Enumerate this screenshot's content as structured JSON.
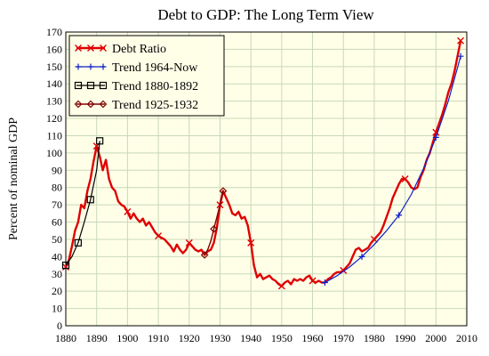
{
  "chart_data": {
    "type": "line",
    "title": "Debt to GDP: The Long Term View",
    "xlabel": "",
    "ylabel": "Percent of nominal GDP",
    "xlim": [
      1880,
      2010
    ],
    "ylim": [
      0,
      170
    ],
    "xticks": [
      1880,
      1890,
      1900,
      1910,
      1920,
      1930,
      1940,
      1950,
      1960,
      1970,
      1980,
      1990,
      2000,
      2010
    ],
    "yticks": [
      0,
      10,
      20,
      30,
      40,
      50,
      60,
      70,
      80,
      90,
      100,
      110,
      120,
      130,
      140,
      150,
      160,
      170
    ],
    "grid": true,
    "legend_position": "top-left",
    "background_color": "#ffffe8",
    "grid_color": "#c8d8b8",
    "series": [
      {
        "name": "Debt Ratio",
        "color": "#e00000",
        "marker": "x",
        "x": [
          1880,
          1881,
          1882,
          1883,
          1884,
          1885,
          1886,
          1887,
          1888,
          1889,
          1890,
          1891,
          1892,
          1893,
          1894,
          1895,
          1896,
          1897,
          1898,
          1899,
          1900,
          1901,
          1902,
          1903,
          1904,
          1905,
          1906,
          1907,
          1908,
          1909,
          1910,
          1911,
          1912,
          1913,
          1914,
          1915,
          1916,
          1917,
          1918,
          1919,
          1920,
          1921,
          1922,
          1923,
          1924,
          1925,
          1926,
          1927,
          1928,
          1929,
          1930,
          1931,
          1932,
          1933,
          1934,
          1935,
          1936,
          1937,
          1938,
          1939,
          1940,
          1941,
          1942,
          1943,
          1944,
          1945,
          1946,
          1947,
          1948,
          1949,
          1950,
          1951,
          1952,
          1953,
          1954,
          1955,
          1956,
          1957,
          1958,
          1959,
          1960,
          1961,
          1962,
          1963,
          1964,
          1965,
          1966,
          1967,
          1968,
          1969,
          1970,
          1971,
          1972,
          1973,
          1974,
          1975,
          1976,
          1977,
          1978,
          1979,
          1980,
          1981,
          1982,
          1983,
          1984,
          1985,
          1986,
          1987,
          1988,
          1989,
          1990,
          1991,
          1992,
          1993,
          1994,
          1995,
          1996,
          1997,
          1998,
          1999,
          2000,
          2001,
          2002,
          2003,
          2004,
          2005,
          2006,
          2007,
          2008
        ],
        "values": [
          34,
          38,
          46,
          55,
          60,
          70,
          68,
          78,
          85,
          95,
          104,
          98,
          90,
          96,
          85,
          80,
          78,
          72,
          70,
          69,
          66,
          62,
          65,
          62,
          60,
          62,
          58,
          60,
          57,
          54,
          52,
          51,
          50,
          48,
          46,
          43,
          47,
          44,
          42,
          44,
          48,
          46,
          44,
          43,
          44,
          41,
          43,
          44,
          48,
          57,
          70,
          78,
          74,
          70,
          65,
          64,
          66,
          62,
          63,
          58,
          48,
          35,
          28,
          30,
          27,
          28,
          29,
          27,
          26,
          24,
          23,
          25,
          26,
          24,
          27,
          26,
          27,
          26,
          28,
          29,
          26,
          25,
          26,
          25,
          25,
          27,
          28,
          30,
          31,
          31,
          32,
          34,
          36,
          40,
          44,
          45,
          43,
          44,
          45,
          48,
          50,
          52,
          54,
          58,
          63,
          68,
          74,
          78,
          82,
          85,
          85,
          83,
          80,
          79,
          80,
          86,
          90,
          96,
          100,
          106,
          112,
          117,
          122,
          128,
          135,
          140,
          147,
          156,
          165
        ]
      },
      {
        "name": "Trend 1964-Now",
        "color": "#1020c8",
        "marker": "+",
        "x": [
          1964,
          1968,
          1972,
          1976,
          1980,
          1984,
          1988,
          1992,
          1996,
          2000,
          2004,
          2008
        ],
        "values": [
          25,
          29,
          34,
          40,
          47,
          55,
          64,
          76,
          91,
          109,
          130,
          156
        ]
      },
      {
        "name": "Trend 1880-1892",
        "color": "#000000",
        "marker": "square",
        "x": [
          1880,
          1882,
          1884,
          1886,
          1888,
          1890,
          1891
        ],
        "values": [
          35,
          40,
          48,
          60,
          73,
          90,
          107
        ]
      },
      {
        "name": "Trend 1925-1932",
        "color": "#800000",
        "marker": "diamond",
        "x": [
          1925,
          1926,
          1927,
          1928,
          1929,
          1930,
          1931
        ],
        "values": [
          41,
          44,
          49,
          56,
          63,
          70,
          78
        ]
      }
    ]
  }
}
